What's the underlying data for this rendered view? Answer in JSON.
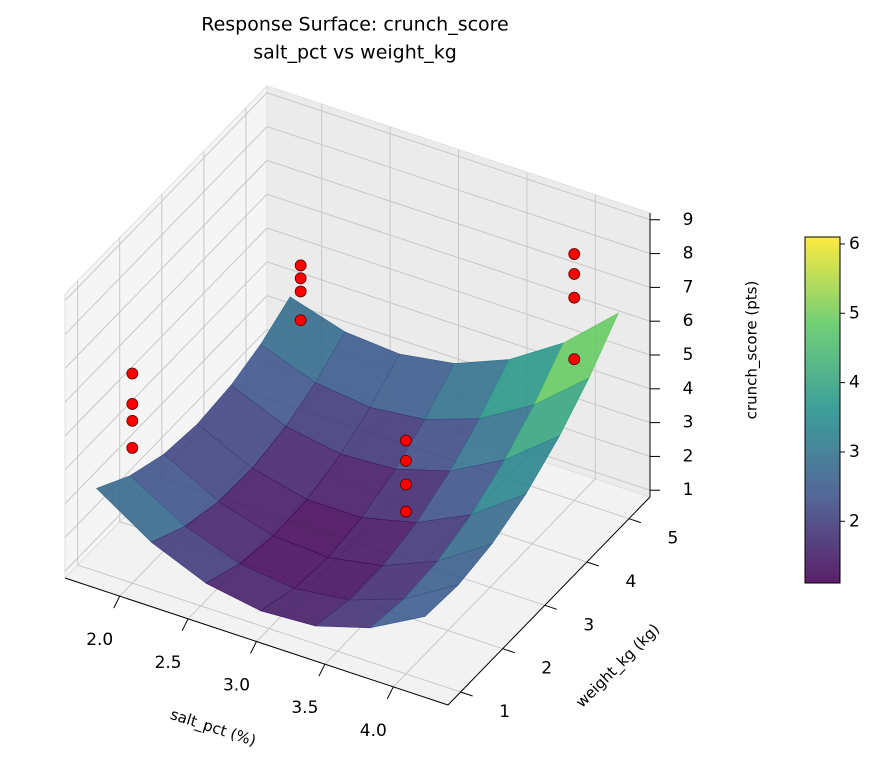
{
  "chart_data": {
    "type": "surface",
    "title": "Response Surface: crunch_score",
    "subtitle": "salt_pct vs weight_kg",
    "xlabel": "salt_pct (%)",
    "ylabel": "weight_kg (kg)",
    "zlabel": "crunch_score (pts)",
    "xlim": [
      1.6,
      4.4
    ],
    "ylim": [
      0.7,
      5.5
    ],
    "zlim": [
      0.8,
      9.2
    ],
    "xticks": [
      {
        "value": 2,
        "label": "2.0"
      },
      {
        "value": 2.5,
        "label": "2.5"
      },
      {
        "value": 3,
        "label": "3.0"
      },
      {
        "value": 3.5,
        "label": "3.5"
      },
      {
        "value": 4,
        "label": "4.0"
      }
    ],
    "yticks": [
      1,
      2,
      3,
      4,
      5
    ],
    "zticks": [
      1,
      2,
      3,
      4,
      5,
      6,
      7,
      8,
      9
    ],
    "grid": true,
    "colormap": "viridis",
    "surface": {
      "x": [
        1.8,
        2.2,
        2.6,
        3.0,
        3.4,
        3.8,
        4.2
      ],
      "y": [
        0.8,
        1.6,
        2.4,
        3.2,
        4.0,
        4.7,
        5.4
      ],
      "z": [
        [
          3.59,
          2.54,
          1.86,
          1.58,
          1.67,
          2.15,
          3.02
        ],
        [
          2.94,
          1.98,
          1.41,
          1.22,
          1.41,
          1.98,
          2.94
        ],
        [
          2.55,
          1.69,
          1.21,
          1.11,
          1.4,
          2.07,
          3.13
        ],
        [
          2.42,
          1.65,
          1.26,
          1.26,
          1.65,
          2.42,
          3.57
        ],
        [
          2.54,
          1.86,
          1.58,
          1.67,
          2.15,
          3.02,
          4.26
        ],
        [
          2.85,
          2.26,
          2.06,
          2.24,
          2.8,
          3.75,
          5.08
        ],
        [
          3.36,
          2.86,
          2.74,
          3.0,
          3.65,
          4.68,
          6.1
        ]
      ]
    },
    "points": {
      "color": "#ff0000",
      "x": [
        2,
        2,
        2,
        2,
        2,
        2,
        2,
        2,
        4,
        4,
        4,
        4,
        4,
        4,
        4,
        4
      ],
      "y": [
        1,
        1,
        1,
        1,
        5,
        5,
        5,
        5,
        1,
        1,
        1,
        1,
        5,
        5,
        5,
        5
      ],
      "z": [
        7.0,
        6.1,
        5.6,
        4.8,
        5.07,
        4.69,
        4.3,
        3.45,
        7.7,
        7.1,
        6.4,
        5.6,
        8.09,
        7.5,
        6.8,
        4.98
      ]
    },
    "colorbar": {
      "lim": [
        1.11,
        6.1
      ],
      "ticks": [
        2,
        3,
        4,
        5,
        6
      ]
    }
  }
}
